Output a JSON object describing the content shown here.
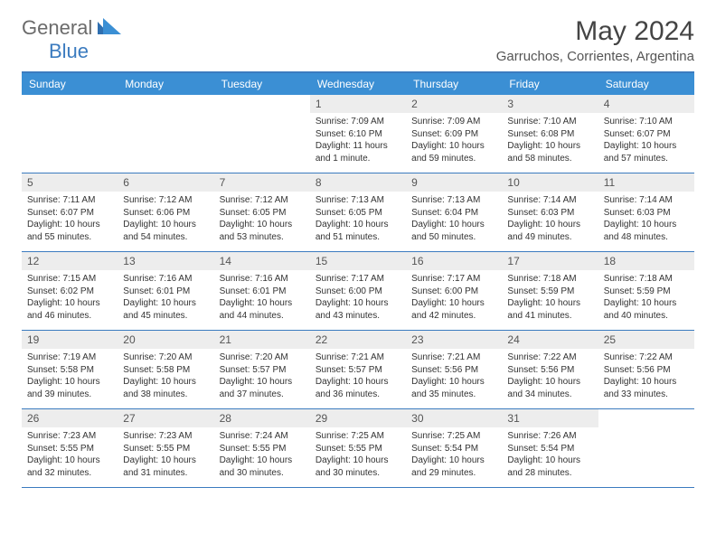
{
  "logo": {
    "text1": "General",
    "text2": "Blue"
  },
  "title": "May 2024",
  "location": "Garruchos, Corrientes, Argentina",
  "colors": {
    "header_bg": "#3b8fd4",
    "header_border": "#3b7bbf",
    "daynum_bg": "#ededed",
    "text": "#333333"
  },
  "day_names": [
    "Sunday",
    "Monday",
    "Tuesday",
    "Wednesday",
    "Thursday",
    "Friday",
    "Saturday"
  ],
  "weeks": [
    [
      null,
      null,
      null,
      {
        "n": "1",
        "sr": "Sunrise: 7:09 AM",
        "ss": "Sunset: 6:10 PM",
        "dl": "Daylight: 11 hours and 1 minute."
      },
      {
        "n": "2",
        "sr": "Sunrise: 7:09 AM",
        "ss": "Sunset: 6:09 PM",
        "dl": "Daylight: 10 hours and 59 minutes."
      },
      {
        "n": "3",
        "sr": "Sunrise: 7:10 AM",
        "ss": "Sunset: 6:08 PM",
        "dl": "Daylight: 10 hours and 58 minutes."
      },
      {
        "n": "4",
        "sr": "Sunrise: 7:10 AM",
        "ss": "Sunset: 6:07 PM",
        "dl": "Daylight: 10 hours and 57 minutes."
      }
    ],
    [
      {
        "n": "5",
        "sr": "Sunrise: 7:11 AM",
        "ss": "Sunset: 6:07 PM",
        "dl": "Daylight: 10 hours and 55 minutes."
      },
      {
        "n": "6",
        "sr": "Sunrise: 7:12 AM",
        "ss": "Sunset: 6:06 PM",
        "dl": "Daylight: 10 hours and 54 minutes."
      },
      {
        "n": "7",
        "sr": "Sunrise: 7:12 AM",
        "ss": "Sunset: 6:05 PM",
        "dl": "Daylight: 10 hours and 53 minutes."
      },
      {
        "n": "8",
        "sr": "Sunrise: 7:13 AM",
        "ss": "Sunset: 6:05 PM",
        "dl": "Daylight: 10 hours and 51 minutes."
      },
      {
        "n": "9",
        "sr": "Sunrise: 7:13 AM",
        "ss": "Sunset: 6:04 PM",
        "dl": "Daylight: 10 hours and 50 minutes."
      },
      {
        "n": "10",
        "sr": "Sunrise: 7:14 AM",
        "ss": "Sunset: 6:03 PM",
        "dl": "Daylight: 10 hours and 49 minutes."
      },
      {
        "n": "11",
        "sr": "Sunrise: 7:14 AM",
        "ss": "Sunset: 6:03 PM",
        "dl": "Daylight: 10 hours and 48 minutes."
      }
    ],
    [
      {
        "n": "12",
        "sr": "Sunrise: 7:15 AM",
        "ss": "Sunset: 6:02 PM",
        "dl": "Daylight: 10 hours and 46 minutes."
      },
      {
        "n": "13",
        "sr": "Sunrise: 7:16 AM",
        "ss": "Sunset: 6:01 PM",
        "dl": "Daylight: 10 hours and 45 minutes."
      },
      {
        "n": "14",
        "sr": "Sunrise: 7:16 AM",
        "ss": "Sunset: 6:01 PM",
        "dl": "Daylight: 10 hours and 44 minutes."
      },
      {
        "n": "15",
        "sr": "Sunrise: 7:17 AM",
        "ss": "Sunset: 6:00 PM",
        "dl": "Daylight: 10 hours and 43 minutes."
      },
      {
        "n": "16",
        "sr": "Sunrise: 7:17 AM",
        "ss": "Sunset: 6:00 PM",
        "dl": "Daylight: 10 hours and 42 minutes."
      },
      {
        "n": "17",
        "sr": "Sunrise: 7:18 AM",
        "ss": "Sunset: 5:59 PM",
        "dl": "Daylight: 10 hours and 41 minutes."
      },
      {
        "n": "18",
        "sr": "Sunrise: 7:18 AM",
        "ss": "Sunset: 5:59 PM",
        "dl": "Daylight: 10 hours and 40 minutes."
      }
    ],
    [
      {
        "n": "19",
        "sr": "Sunrise: 7:19 AM",
        "ss": "Sunset: 5:58 PM",
        "dl": "Daylight: 10 hours and 39 minutes."
      },
      {
        "n": "20",
        "sr": "Sunrise: 7:20 AM",
        "ss": "Sunset: 5:58 PM",
        "dl": "Daylight: 10 hours and 38 minutes."
      },
      {
        "n": "21",
        "sr": "Sunrise: 7:20 AM",
        "ss": "Sunset: 5:57 PM",
        "dl": "Daylight: 10 hours and 37 minutes."
      },
      {
        "n": "22",
        "sr": "Sunrise: 7:21 AM",
        "ss": "Sunset: 5:57 PM",
        "dl": "Daylight: 10 hours and 36 minutes."
      },
      {
        "n": "23",
        "sr": "Sunrise: 7:21 AM",
        "ss": "Sunset: 5:56 PM",
        "dl": "Daylight: 10 hours and 35 minutes."
      },
      {
        "n": "24",
        "sr": "Sunrise: 7:22 AM",
        "ss": "Sunset: 5:56 PM",
        "dl": "Daylight: 10 hours and 34 minutes."
      },
      {
        "n": "25",
        "sr": "Sunrise: 7:22 AM",
        "ss": "Sunset: 5:56 PM",
        "dl": "Daylight: 10 hours and 33 minutes."
      }
    ],
    [
      {
        "n": "26",
        "sr": "Sunrise: 7:23 AM",
        "ss": "Sunset: 5:55 PM",
        "dl": "Daylight: 10 hours and 32 minutes."
      },
      {
        "n": "27",
        "sr": "Sunrise: 7:23 AM",
        "ss": "Sunset: 5:55 PM",
        "dl": "Daylight: 10 hours and 31 minutes."
      },
      {
        "n": "28",
        "sr": "Sunrise: 7:24 AM",
        "ss": "Sunset: 5:55 PM",
        "dl": "Daylight: 10 hours and 30 minutes."
      },
      {
        "n": "29",
        "sr": "Sunrise: 7:25 AM",
        "ss": "Sunset: 5:55 PM",
        "dl": "Daylight: 10 hours and 30 minutes."
      },
      {
        "n": "30",
        "sr": "Sunrise: 7:25 AM",
        "ss": "Sunset: 5:54 PM",
        "dl": "Daylight: 10 hours and 29 minutes."
      },
      {
        "n": "31",
        "sr": "Sunrise: 7:26 AM",
        "ss": "Sunset: 5:54 PM",
        "dl": "Daylight: 10 hours and 28 minutes."
      },
      null
    ]
  ]
}
